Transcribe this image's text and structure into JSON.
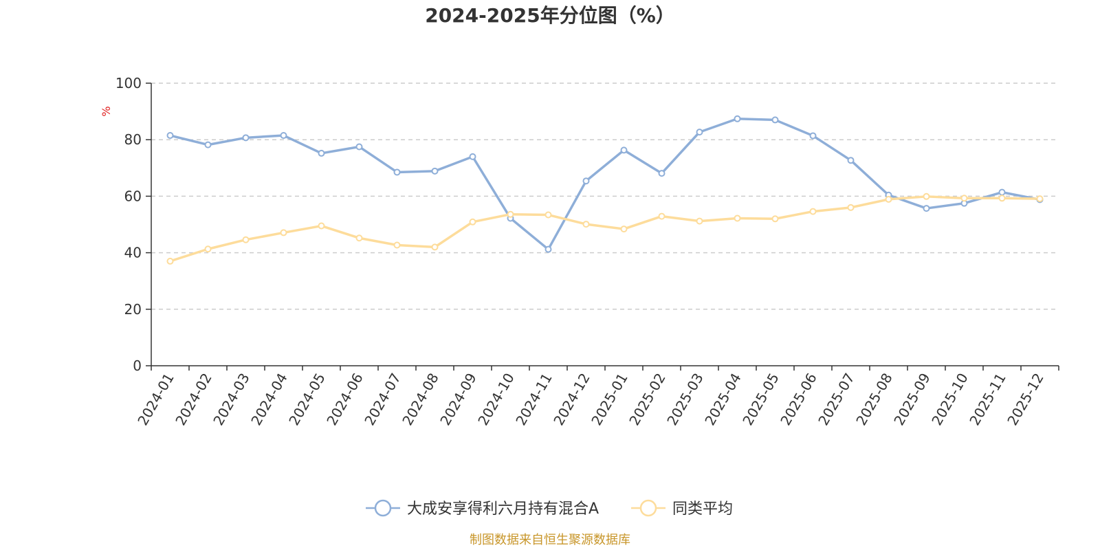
{
  "chart_data": {
    "type": "line",
    "title": "2024-2025年分位图（%）",
    "ylabel": "%",
    "ylim": [
      0,
      100
    ],
    "yticks": [
      0,
      20,
      40,
      60,
      80,
      100
    ],
    "grid": true,
    "legend_position": "bottom",
    "categories": [
      "2024-01",
      "2024-02",
      "2024-03",
      "2024-04",
      "2024-05",
      "2024-06",
      "2024-07",
      "2024-08",
      "2024-09",
      "2024-10",
      "2024-11",
      "2024-12",
      "2025-01",
      "2025-02",
      "2025-03",
      "2025-04",
      "2025-05",
      "2025-06",
      "2025-07",
      "2025-08",
      "2025-09",
      "2025-10",
      "2025-11",
      "2025-12"
    ],
    "series": [
      {
        "name": "大成安享得利六月持有混合A",
        "color": "#8eaed8",
        "values": [
          81.5,
          78.2,
          80.7,
          81.5,
          75.2,
          77.5,
          68.5,
          68.9,
          74.0,
          52.2,
          41.2,
          65.4,
          76.3,
          68.1,
          82.7,
          87.4,
          87.0,
          81.4,
          72.7,
          60.4,
          55.7,
          57.5,
          61.4,
          58.8
        ]
      },
      {
        "name": "同类平均",
        "color": "#fddc9b",
        "values": [
          37.0,
          41.3,
          44.6,
          47.1,
          49.5,
          45.2,
          42.7,
          42.0,
          50.9,
          53.6,
          53.4,
          50.1,
          48.4,
          52.9,
          51.2,
          52.2,
          52.0,
          54.6,
          56.0,
          58.9,
          59.9,
          59.3,
          59.3,
          59.1
        ]
      }
    ]
  },
  "source_text": "制图数据来自恒生聚源数据库"
}
